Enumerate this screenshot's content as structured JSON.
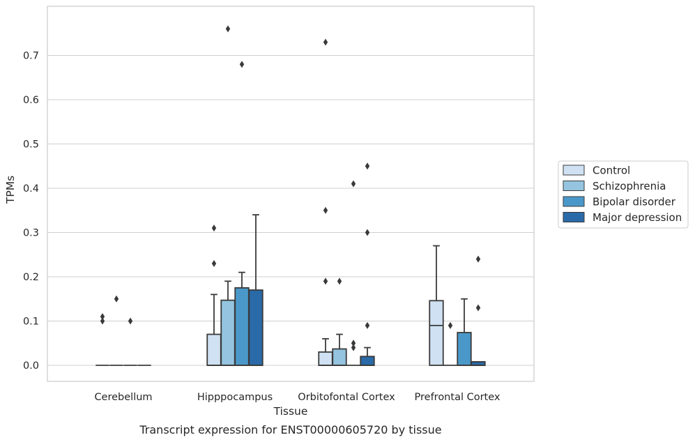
{
  "chart_data": {
    "type": "box",
    "title": "",
    "caption": "Transcript expression for ENST00000605720 by tissue",
    "xlabel": "Tissue",
    "ylabel": "TPMs",
    "ylim": [
      -0.037,
      0.8
    ],
    "yticks": [
      0.0,
      0.1,
      0.2,
      0.3,
      0.4,
      0.5,
      0.6,
      0.7
    ],
    "ytick_labels": [
      "0.0",
      "0.1",
      "0.2",
      "0.3",
      "0.4",
      "0.5",
      "0.6",
      "0.7"
    ],
    "grid": "horizontal",
    "legend_position": "right",
    "categories": [
      "Cerebellum",
      "Hipppocampus",
      "Orbitofontal Cortex",
      "Prefrontal Cortex"
    ],
    "series": [
      {
        "name": "Control",
        "color": "#cfe1f2",
        "boxes": [
          {
            "q1": 0.0,
            "median": 0.0,
            "q3": 0.0,
            "whisker_low": 0.0,
            "whisker_high": 0.0,
            "outliers": [
              0.11,
              0.1
            ]
          },
          {
            "q1": 0.0,
            "median": 0.0,
            "q3": 0.07,
            "whisker_low": 0.0,
            "whisker_high": 0.16,
            "outliers": [
              0.31,
              0.23
            ]
          },
          {
            "q1": 0.0,
            "median": 0.0,
            "q3": 0.03,
            "whisker_low": 0.0,
            "whisker_high": 0.06,
            "outliers": [
              0.73,
              0.35,
              0.19
            ]
          },
          {
            "q1": 0.0,
            "median": 0.09,
            "q3": 0.146,
            "whisker_low": 0.0,
            "whisker_high": 0.27,
            "outliers": []
          }
        ]
      },
      {
        "name": "Schizophrenia",
        "color": "#94c4df",
        "boxes": [
          {
            "q1": 0.0,
            "median": 0.0,
            "q3": 0.0,
            "whisker_low": 0.0,
            "whisker_high": 0.0,
            "outliers": [
              0.15
            ]
          },
          {
            "q1": 0.0,
            "median": 0.0,
            "q3": 0.147,
            "whisker_low": 0.0,
            "whisker_high": 0.19,
            "outliers": [
              0.76
            ]
          },
          {
            "q1": 0.0,
            "median": 0.0,
            "q3": 0.037,
            "whisker_low": 0.0,
            "whisker_high": 0.07,
            "outliers": [
              0.19
            ]
          },
          {
            "q1": 0.0,
            "median": 0.0,
            "q3": 0.0,
            "whisker_low": 0.0,
            "whisker_high": 0.0,
            "outliers": [
              0.09
            ]
          }
        ]
      },
      {
        "name": "Bipolar disorder",
        "color": "#4a98c9",
        "boxes": [
          {
            "q1": 0.0,
            "median": 0.0,
            "q3": 0.0,
            "whisker_low": 0.0,
            "whisker_high": 0.0,
            "outliers": [
              0.1
            ]
          },
          {
            "q1": 0.0,
            "median": 0.0,
            "q3": 0.175,
            "whisker_low": 0.0,
            "whisker_high": 0.21,
            "outliers": [
              0.68
            ]
          },
          {
            "q1": 0.0,
            "median": 0.0,
            "q3": 0.0,
            "whisker_low": 0.0,
            "whisker_high": 0.0,
            "outliers": [
              0.41,
              0.05,
              0.04
            ]
          },
          {
            "q1": 0.0,
            "median": 0.0,
            "q3": 0.074,
            "whisker_low": 0.0,
            "whisker_high": 0.15,
            "outliers": []
          }
        ]
      },
      {
        "name": "Major depression",
        "color": "#2a6aa8",
        "boxes": [
          {
            "q1": 0.0,
            "median": 0.0,
            "q3": 0.0,
            "whisker_low": 0.0,
            "whisker_high": 0.0,
            "outliers": []
          },
          {
            "q1": 0.0,
            "median": 0.0,
            "q3": 0.17,
            "whisker_low": 0.0,
            "whisker_high": 0.34,
            "outliers": []
          },
          {
            "q1": 0.0,
            "median": 0.0,
            "q3": 0.02,
            "whisker_low": 0.0,
            "whisker_high": 0.04,
            "outliers": [
              0.45,
              0.3,
              0.09
            ]
          },
          {
            "q1": 0.0,
            "median": 0.0,
            "q3": 0.008,
            "whisker_low": 0.0,
            "whisker_high": 0.008,
            "outliers": [
              0.24,
              0.13
            ]
          }
        ]
      }
    ]
  }
}
